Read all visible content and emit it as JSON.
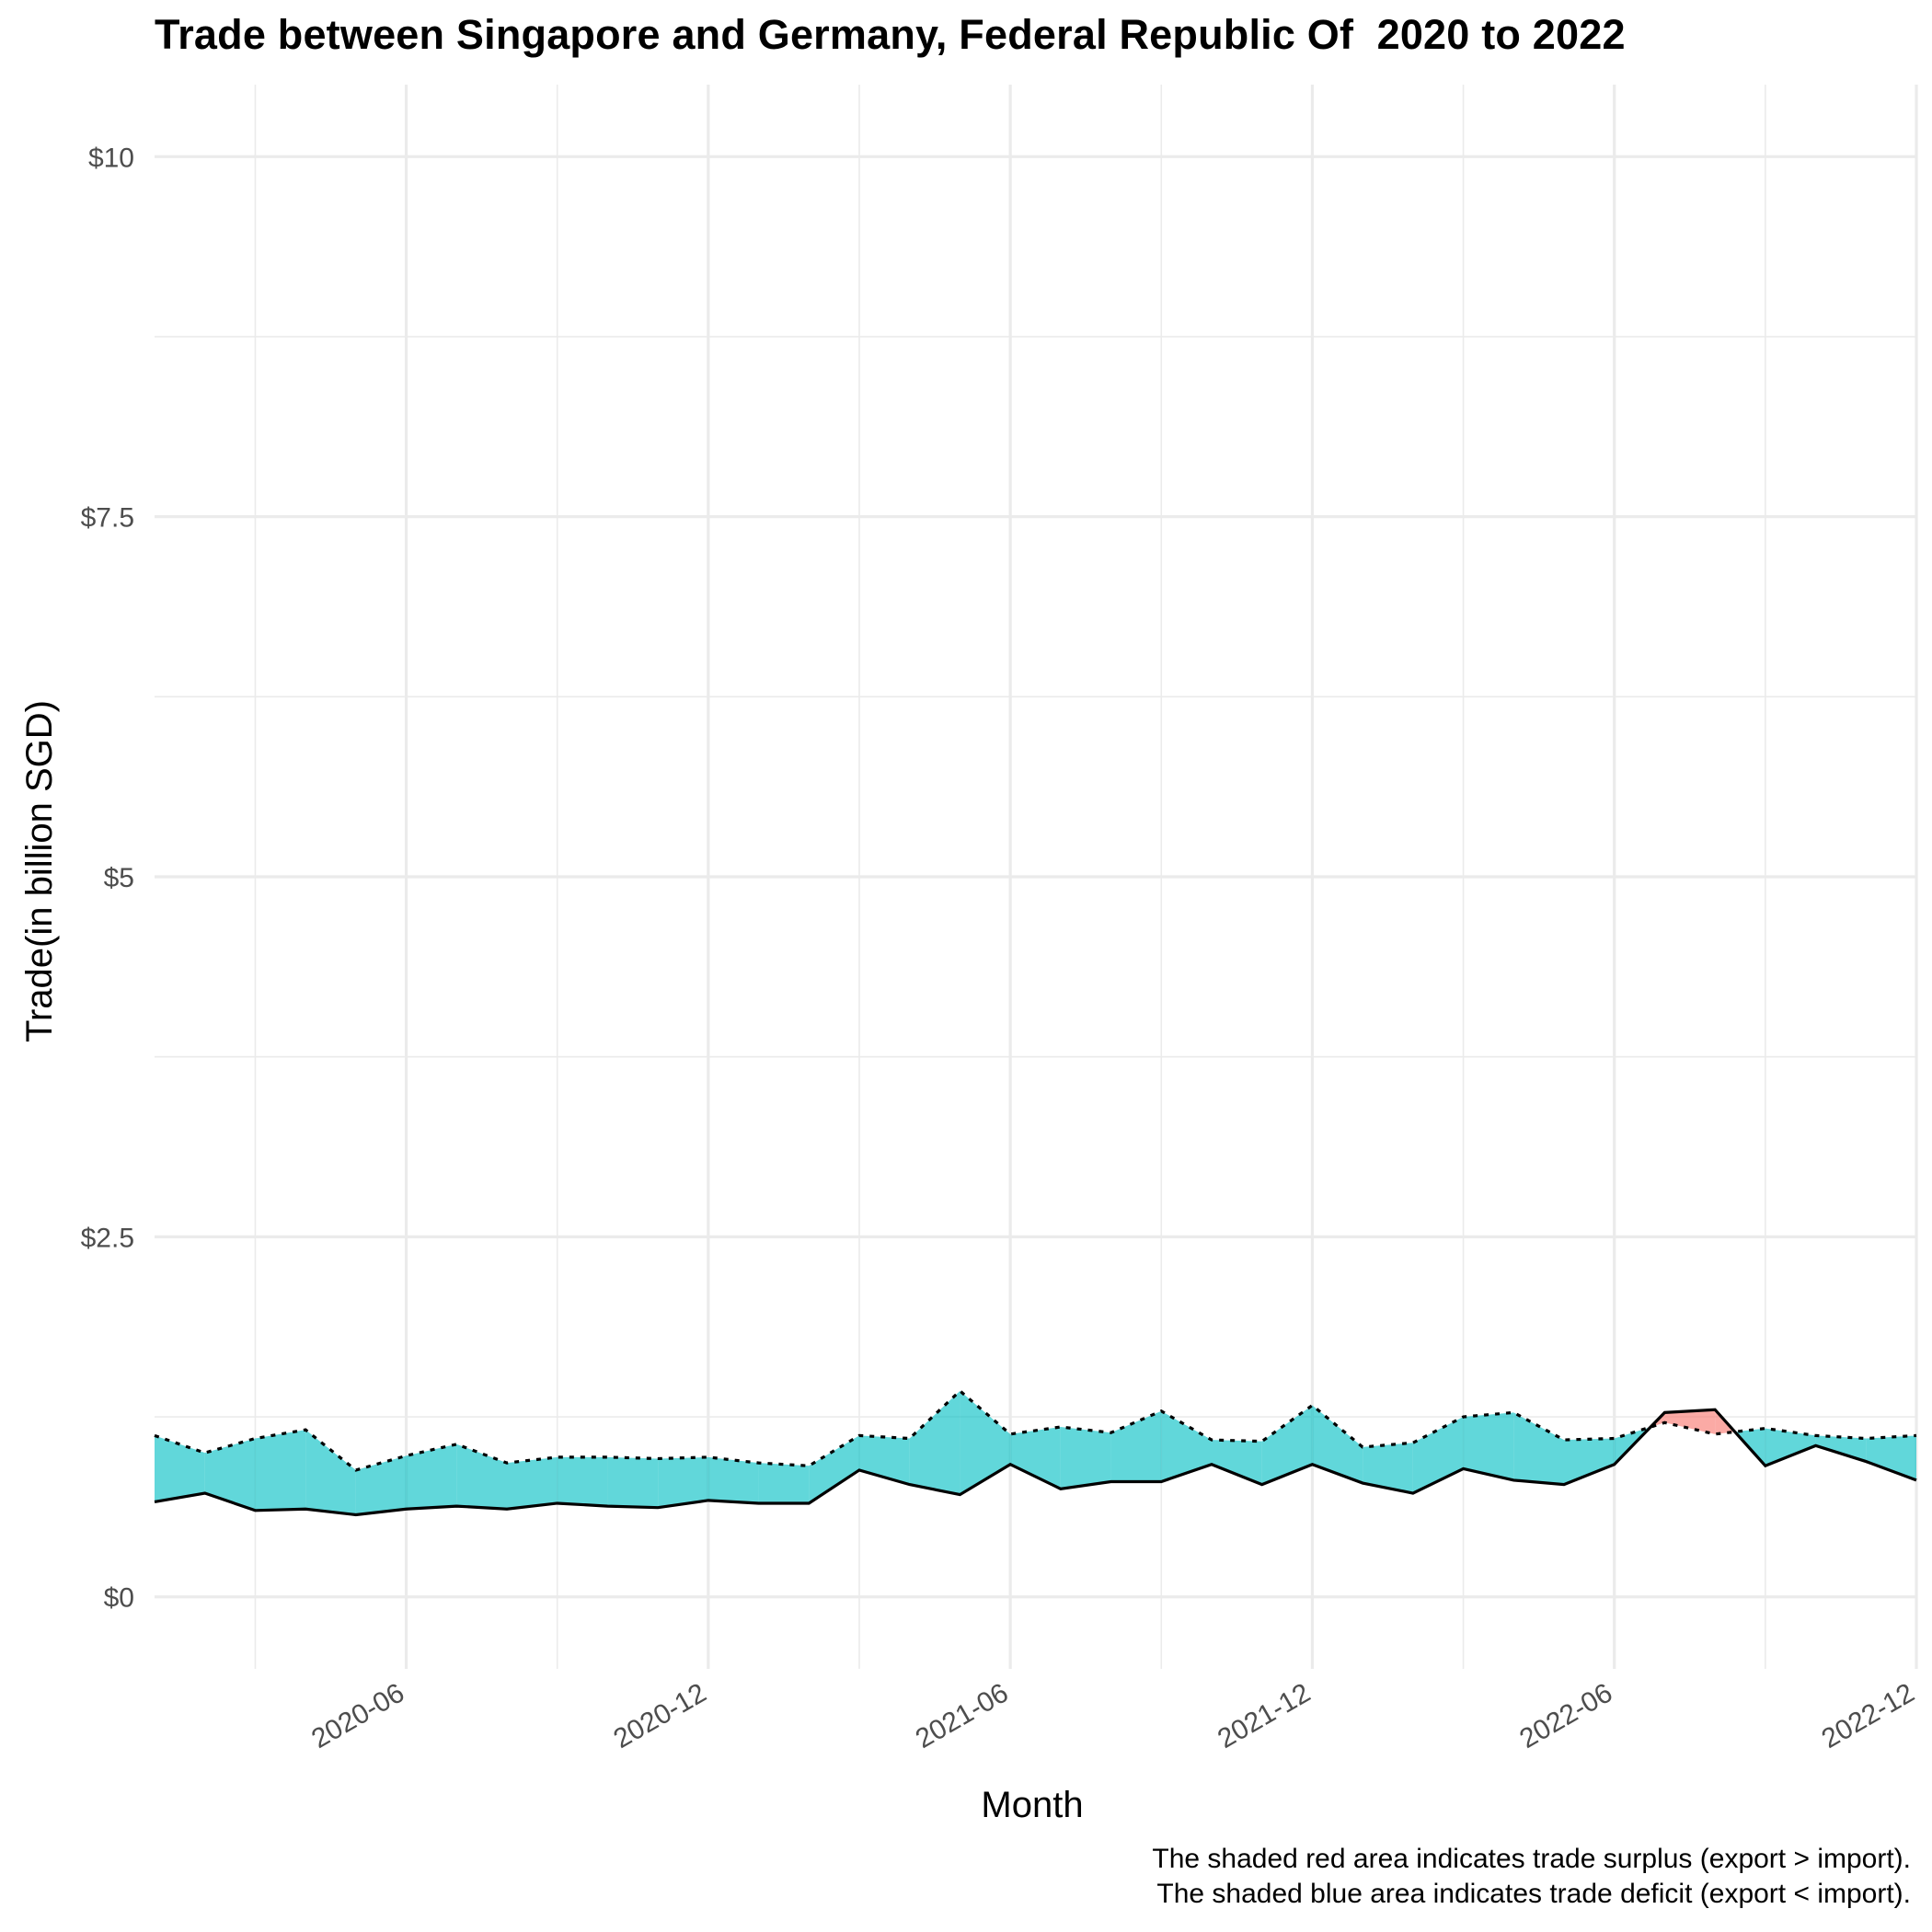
{
  "chart_data": {
    "type": "area",
    "title": "Trade between Singapore and Germany, Federal Republic Of  2020 to 2022",
    "xlabel": "Month",
    "ylabel": "Trade(in billion SGD)",
    "x_tick_labels": [
      "2020-06",
      "2020-12",
      "2021-06",
      "2021-12",
      "2022-06",
      "2022-12"
    ],
    "y_tick_labels": [
      "$0",
      "$2.5",
      "$5",
      "$7.5",
      "$10"
    ],
    "y_tick_values": [
      0,
      2.5,
      5,
      7.5,
      10
    ],
    "ylim": [
      -0.5,
      10.5
    ],
    "xlim": [
      "2020-01",
      "2022-12"
    ],
    "grid": true,
    "x": [
      "2020-01",
      "2020-02",
      "2020-03",
      "2020-04",
      "2020-05",
      "2020-06",
      "2020-07",
      "2020-08",
      "2020-09",
      "2020-10",
      "2020-11",
      "2020-12",
      "2021-01",
      "2021-02",
      "2021-03",
      "2021-04",
      "2021-05",
      "2021-06",
      "2021-07",
      "2021-08",
      "2021-09",
      "2021-10",
      "2021-11",
      "2021-12",
      "2022-01",
      "2022-02",
      "2022-03",
      "2022-04",
      "2022-05",
      "2022-06",
      "2022-07",
      "2022-08",
      "2022-09",
      "2022-10",
      "2022-11",
      "2022-12"
    ],
    "series": [
      {
        "values": [
          0.66,
          0.72,
          0.6,
          0.61,
          0.57,
          0.61,
          0.63,
          0.61,
          0.65,
          0.63,
          0.62,
          0.67,
          0.65,
          0.65,
          0.88,
          0.78,
          0.71,
          0.92,
          0.75,
          0.8,
          0.8,
          0.92,
          0.78,
          0.92,
          0.79,
          0.72,
          0.89,
          0.81,
          0.78,
          0.92,
          1.28,
          1.3,
          0.91,
          1.05,
          0.94,
          0.81
        ]
      },
      {
        "values": [
          1.12,
          1.0,
          1.1,
          1.16,
          0.88,
          0.98,
          1.06,
          0.93,
          0.97,
          0.97,
          0.96,
          0.97,
          0.93,
          0.91,
          1.12,
          1.1,
          1.43,
          1.13,
          1.18,
          1.14,
          1.29,
          1.09,
          1.08,
          1.33,
          1.04,
          1.07,
          1.25,
          1.28,
          1.09,
          1.1,
          1.21,
          1.13,
          1.17,
          1.12,
          1.1,
          1.12
        ]
      }
    ],
    "colors": {
      "surplus": "#F8766D",
      "deficit": "#00BFC4",
      "grid": "#ebebeb",
      "tick_text": "#4d4d4d"
    },
    "captions": [
      "The shaded red area indicates trade surplus (export > import).",
      "The shaded blue area indicates trade deficit (export < import)."
    ]
  }
}
